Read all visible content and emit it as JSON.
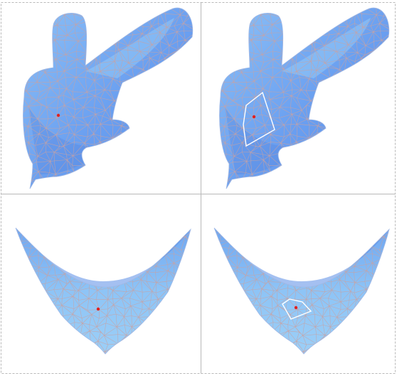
{
  "figure": {
    "panels": [
      {
        "row": "top",
        "column": "left",
        "shape": "bunny",
        "selected_vertex": true,
        "patch_outline": false
      },
      {
        "row": "top",
        "column": "right",
        "shape": "bunny",
        "selected_vertex": true,
        "patch_outline": true
      },
      {
        "row": "bottom",
        "column": "left",
        "shape": "saddle",
        "selected_vertex": true,
        "patch_outline": false
      },
      {
        "row": "bottom",
        "column": "right",
        "shape": "saddle",
        "selected_vertex": true,
        "patch_outline": true
      }
    ],
    "colors": {
      "mesh_fill": "#6a9ff0",
      "mesh_highlight": "#8fc6f7",
      "wireframe_edges": "#c9a2a2",
      "selected_vertex": "#e02020",
      "patch_outline": "#ffffff",
      "panel_border": "#b9b9b9"
    }
  }
}
